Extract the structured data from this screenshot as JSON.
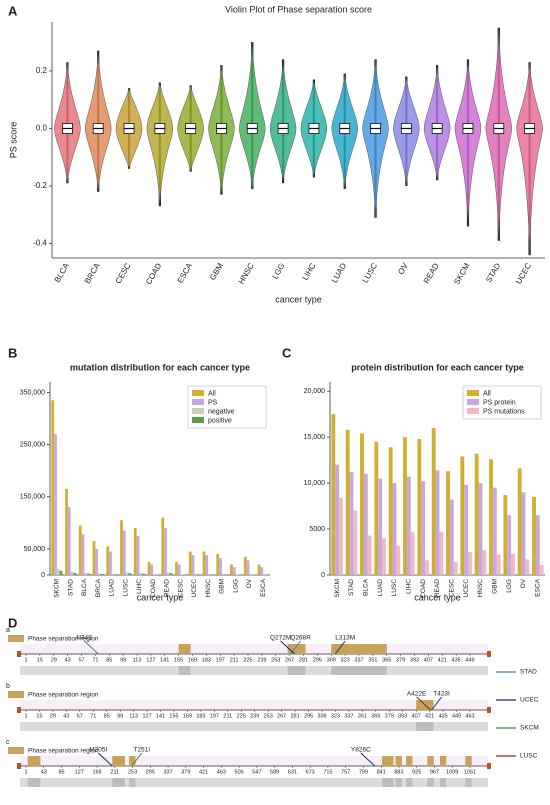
{
  "panel_labels": [
    "A",
    "B",
    "C",
    "D"
  ],
  "chart_data": [
    {
      "type": "violin",
      "title": "Violin Plot of Phase separation score",
      "x_label": "cancer type",
      "y_label": "PS score",
      "categories": [
        "BLCA",
        "BRCA",
        "CESC",
        "COAD",
        "ESCA",
        "GBM",
        "HNSC",
        "LGG",
        "LIHC",
        "LUAD",
        "LUSC",
        "OV",
        "READ",
        "SKCM",
        "STAD",
        "UCEC"
      ],
      "max_values": [
        0.23,
        0.27,
        0.14,
        0.16,
        0.15,
        0.22,
        0.3,
        0.24,
        0.17,
        0.19,
        0.24,
        0.18,
        0.22,
        0.24,
        0.35,
        0.23
      ],
      "min_values": [
        -0.19,
        -0.22,
        -0.14,
        -0.27,
        -0.15,
        -0.23,
        -0.21,
        -0.19,
        -0.17,
        -0.21,
        -0.31,
        -0.2,
        -0.18,
        -0.34,
        -0.39,
        -0.44
      ],
      "median_values": [
        0,
        0,
        0,
        0,
        0,
        0,
        0,
        0,
        0,
        0,
        0,
        0,
        0,
        0,
        0,
        0
      ],
      "colors": [
        "#e8757a",
        "#e08a5a",
        "#c9a23a",
        "#b5a832",
        "#9aaa2e",
        "#7aae3a",
        "#45b060",
        "#35b28a",
        "#2ab4a8",
        "#2aa8c8",
        "#4a9ae0",
        "#8a8ae6",
        "#b07ee0",
        "#cf6fd4",
        "#e06ab5",
        "#e86f96"
      ],
      "ylim": [
        -0.45,
        0.37
      ],
      "yticks": [
        0.2,
        {
          "value": 0,
          "label": "0.0"
        },
        -0.2,
        -0.4
      ]
    },
    {
      "type": "bar",
      "title": "mutation distribution for each cancer type",
      "x_label": "cancer type",
      "categories": [
        "SKCM",
        "STAD",
        "BLCA",
        "BRCA",
        "LUAD",
        "LUSC",
        "LIHC",
        "COAD",
        "READ",
        "CESC",
        "UCEC",
        "HNSC",
        "GBM",
        "LGG",
        "OV",
        "ESCA"
      ],
      "series": [
        {
          "name": "All",
          "color": "#cfae30",
          "values": [
            335000,
            165000,
            95000,
            65000,
            55000,
            105000,
            90000,
            25000,
            110000,
            25000,
            45000,
            45000,
            40000,
            20000,
            35000,
            20000
          ]
        },
        {
          "name": "PS",
          "color": "#c9a6dc",
          "values": [
            270000,
            130000,
            78000,
            50000,
            45000,
            85000,
            75000,
            20000,
            90000,
            20000,
            38000,
            38000,
            32000,
            15000,
            28000,
            15000
          ]
        },
        {
          "name": "negative",
          "color": "#c8d0b4",
          "values": [
            12000,
            6000,
            4000,
            3000,
            2500,
            5000,
            4000,
            1000,
            5000,
            1000,
            2000,
            2000,
            2000,
            800,
            1500,
            800
          ]
        },
        {
          "name": "positive",
          "color": "#5c9e45",
          "values": [
            8000,
            4000,
            2500,
            2000,
            1500,
            3500,
            2500,
            600,
            3500,
            600,
            1200,
            1200,
            1200,
            500,
            1000,
            500
          ]
        }
      ],
      "ylim": [
        0,
        370000
      ],
      "yticks": [
        0,
        {
          "value": 50000,
          "label": "50,000"
        },
        {
          "value": 150000,
          "label": "150,000"
        },
        {
          "value": 250000,
          "label": "250,000"
        },
        {
          "value": 350000,
          "label": "350,000"
        }
      ]
    },
    {
      "type": "bar",
      "title": "protein distribution for each cancer type",
      "x_label": "cancer type",
      "categories": [
        "SKCM",
        "STAD",
        "BLCA",
        "LUAD",
        "LUSC",
        "LIHC",
        "COAD",
        "READ",
        "CESC",
        "UCEC",
        "HNSC",
        "GBM",
        "LGG",
        "OV",
        "ESCA"
      ],
      "series": [
        {
          "name": "All",
          "color": "#cfae30",
          "values": [
            17500,
            15800,
            15400,
            14500,
            13900,
            15000,
            14800,
            16000,
            11300,
            12900,
            13200,
            12600,
            8700,
            11600,
            8500
          ]
        },
        {
          "name": "PS protein",
          "color": "#c9a6dc",
          "values": [
            12000,
            11200,
            11000,
            10500,
            10000,
            10700,
            10200,
            11400,
            8200,
            9800,
            10000,
            9500,
            6500,
            9000,
            6500
          ]
        },
        {
          "name": "PS mutations",
          "color": "#f2b8c6",
          "values": [
            8400,
            7000,
            4300,
            4000,
            3200,
            4700,
            1600,
            4700,
            1400,
            2500,
            2700,
            2200,
            2300,
            1700,
            1100
          ]
        }
      ],
      "ylim": [
        0,
        21000
      ],
      "yticks": [
        0,
        5000,
        {
          "value": 10000,
          "label": "10,000"
        },
        {
          "value": 15000,
          "label": "15,000"
        },
        {
          "value": 20000,
          "label": "20,000"
        }
      ]
    }
  ],
  "protein_tracks": {
    "region_label": "Phase separation region",
    "legend": [
      {
        "name": "STAD",
        "color": "#4a7ab5"
      },
      {
        "name": "UCEC",
        "color": "#1f2a6b"
      },
      {
        "name": "SKCM",
        "color": "#3a8a3a"
      },
      {
        "name": "LUSC",
        "color": "#8b2a1a"
      }
    ],
    "tracks": [
      {
        "label": "a",
        "ticks": [
          1,
          15,
          29,
          43,
          57,
          71,
          85,
          99,
          113,
          127,
          141,
          155,
          169,
          183,
          197,
          211,
          225,
          239,
          253,
          267,
          281,
          295,
          309,
          323,
          337,
          351,
          365,
          379,
          393,
          407,
          421,
          435,
          449
        ],
        "regions": [
          [
            155,
            167
          ],
          [
            265,
            283
          ],
          [
            309,
            365
          ]
        ],
        "mutations": [
          {
            "label": "N74S",
            "position": 74,
            "color": "#4a7ab5"
          },
          {
            "label": "Q268R",
            "position": 268,
            "color": "#4a7ab5"
          },
          {
            "label": "Q272M",
            "position": 272,
            "color": "#1f2a6b"
          },
          {
            "label": "L313M",
            "position": 313,
            "color": "#1f2a6b"
          }
        ]
      },
      {
        "label": "b",
        "ticks": [
          1,
          15,
          29,
          43,
          57,
          71,
          85,
          99,
          113,
          127,
          141,
          155,
          169,
          183,
          197,
          211,
          225,
          239,
          253,
          267,
          281,
          295,
          309,
          323,
          337,
          351,
          365,
          379,
          393,
          407,
          421,
          435,
          449,
          463
        ],
        "regions": [
          [
            407,
            425
          ]
        ],
        "mutations": [
          {
            "label": "A422E",
            "position": 422,
            "color": "#8b2a1a"
          },
          {
            "label": "T423I",
            "position": 423,
            "color": "#1f2a6b"
          }
        ]
      },
      {
        "label": "c",
        "ticks": [
          1,
          43,
          85,
          127,
          169,
          211,
          253,
          295,
          337,
          379,
          421,
          463,
          505,
          547,
          589,
          631,
          673,
          715,
          757,
          799,
          841,
          883,
          925,
          967,
          1009,
          1051
        ],
        "regions": [
          [
            5,
            35
          ],
          [
            205,
            235
          ],
          [
            245,
            260
          ],
          [
            843,
            870
          ],
          [
            875,
            890
          ],
          [
            900,
            915
          ],
          [
            950,
            965
          ],
          [
            980,
            995
          ],
          [
            1040,
            1055
          ]
        ],
        "mutations": [
          {
            "label": "M205I",
            "position": 205,
            "color": "#1f2a6b"
          },
          {
            "label": "T251I",
            "position": 251,
            "color": "#3a8a3a"
          },
          {
            "label": "Y826C",
            "position": 826,
            "color": "#1f2a6b"
          }
        ]
      }
    ]
  }
}
